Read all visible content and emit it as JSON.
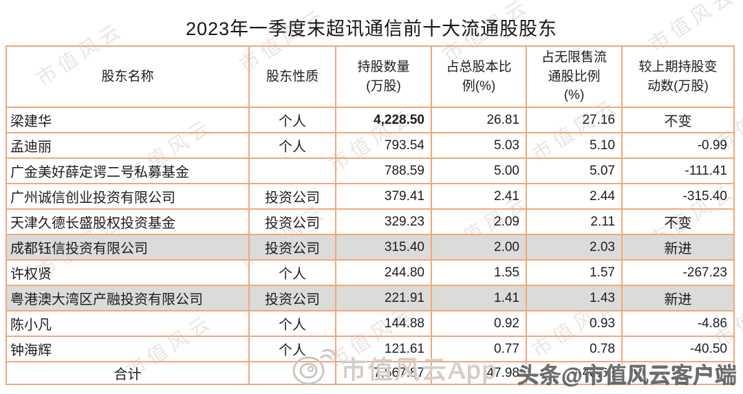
{
  "title": "2023年一季度末超讯通信前十大流通股股东",
  "watermark": {
    "tile_text": "市值风云",
    "app_badge": "市值风云App",
    "toutiao_badge": "头条@市值风云客户端"
  },
  "colors": {
    "table_border": "#f3a679",
    "row_highlight": "#dbdbd9",
    "watermark_gray": "#e9e6e3",
    "text": "#1c1c1c"
  },
  "table": {
    "headers": [
      "股东名称",
      "股东性质",
      "持股数量\n(万股)",
      "占总股本比\n例(%)",
      "占无限售流\n通股比例\n(%)",
      "较上期持股变\n动数(万股)"
    ],
    "rows": [
      {
        "name": "梁建华",
        "nature": "个人",
        "shares": "4,228.50",
        "pct_total": "26.81",
        "pct_float": "27.16",
        "change": "不变",
        "highlight": false,
        "shares_bold": true
      },
      {
        "name": "孟迪丽",
        "nature": "个人",
        "shares": "793.54",
        "pct_total": "5.03",
        "pct_float": "5.10",
        "change": "-0.99",
        "highlight": false,
        "shares_bold": false
      },
      {
        "name": "广金美好薛定谔二号私募基金",
        "nature": "",
        "shares": "788.59",
        "pct_total": "5.00",
        "pct_float": "5.07",
        "change": "-111.41",
        "highlight": false,
        "shares_bold": false
      },
      {
        "name": "广州诚信创业投资有限公司",
        "nature": "投资公司",
        "shares": "379.41",
        "pct_total": "2.41",
        "pct_float": "2.44",
        "change": "-315.40",
        "highlight": false,
        "shares_bold": false
      },
      {
        "name": "天津久德长盛股权投资基金",
        "nature": "投资公司",
        "shares": "329.23",
        "pct_total": "2.09",
        "pct_float": "2.11",
        "change": "不变",
        "highlight": false,
        "shares_bold": false
      },
      {
        "name": "成都钰信投资有限公司",
        "nature": "投资公司",
        "shares": "315.40",
        "pct_total": "2.00",
        "pct_float": "2.03",
        "change": "新进",
        "highlight": true,
        "shares_bold": false
      },
      {
        "name": "许权贤",
        "nature": "个人",
        "shares": "244.80",
        "pct_total": "1.55",
        "pct_float": "1.57",
        "change": "-267.23",
        "highlight": false,
        "shares_bold": false
      },
      {
        "name": "粤港澳大湾区产融投资有限公司",
        "nature": "投资公司",
        "shares": "221.91",
        "pct_total": "1.41",
        "pct_float": "1.43",
        "change": "新进",
        "highlight": true,
        "shares_bold": false
      },
      {
        "name": "陈小凡",
        "nature": "个人",
        "shares": "144.88",
        "pct_total": "0.92",
        "pct_float": "0.93",
        "change": "-4.86",
        "highlight": false,
        "shares_bold": false
      },
      {
        "name": "钟海辉",
        "nature": "个人",
        "shares": "121.61",
        "pct_total": "0.77",
        "pct_float": "0.78",
        "change": "-40.50",
        "highlight": false,
        "shares_bold": false
      }
    ],
    "total_row": {
      "label": "合计",
      "nature": "",
      "shares": "7,567.87",
      "pct_total": "47.98",
      "pct_float": "48.62",
      "change": ""
    }
  },
  "chart_data": {
    "type": "table",
    "title": "2023年一季度末超讯通信前十大流通股股东",
    "columns": [
      "股东名称",
      "股东性质",
      "持股数量(万股)",
      "占总股本比例(%)",
      "占无限售流通股比例(%)",
      "较上期持股变动数(万股)"
    ],
    "rows": [
      [
        "梁建华",
        "个人",
        4228.5,
        26.81,
        27.16,
        "不变"
      ],
      [
        "孟迪丽",
        "个人",
        793.54,
        5.03,
        5.1,
        -0.99
      ],
      [
        "广金美好薛定谔二号私募基金",
        "",
        788.59,
        5.0,
        5.07,
        -111.41
      ],
      [
        "广州诚信创业投资有限公司",
        "投资公司",
        379.41,
        2.41,
        2.44,
        -315.4
      ],
      [
        "天津久德长盛股权投资基金",
        "投资公司",
        329.23,
        2.09,
        2.11,
        "不变"
      ],
      [
        "成都钰信投资有限公司",
        "投资公司",
        315.4,
        2.0,
        2.03,
        "新进"
      ],
      [
        "许权贤",
        "个人",
        244.8,
        1.55,
        1.57,
        -267.23
      ],
      [
        "粤港澳大湾区产融投资有限公司",
        "投资公司",
        221.91,
        1.41,
        1.43,
        "新进"
      ],
      [
        "陈小凡",
        "个人",
        144.88,
        0.92,
        0.93,
        -4.86
      ],
      [
        "钟海辉",
        "个人",
        121.61,
        0.77,
        0.78,
        -40.5
      ]
    ],
    "total": [
      "合计",
      "",
      7567.87,
      47.98,
      48.62,
      ""
    ],
    "highlighted_rows": [
      "成都钰信投资有限公司",
      "粤港澳大湾区产融投资有限公司"
    ]
  }
}
